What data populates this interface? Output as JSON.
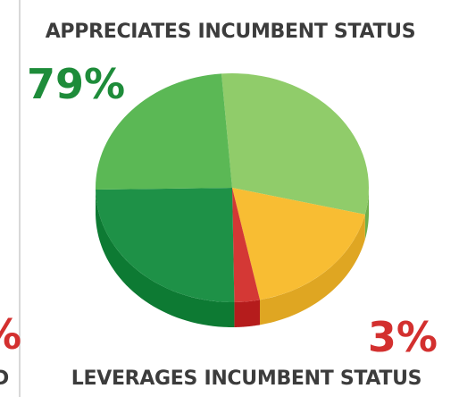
{
  "chart_data": {
    "type": "pie",
    "title": "APPRECIATES INCUMBENT STATUS",
    "subtitle": "LEVERAGES INCUMBENT STATUS",
    "annotations": [
      "79%",
      "3%"
    ],
    "fragments": [
      "%",
      "D"
    ],
    "categories": [
      null,
      null,
      null,
      null,
      null
    ],
    "values": [
      30,
      18,
      3,
      25,
      24
    ],
    "colors": [
      "#90cc6a",
      "#f8bd33",
      "#d43835",
      "#1e9147",
      "#5bb855"
    ],
    "side_colors": [
      "#6fb04a",
      "#dfa622",
      "#b51c1c",
      "#0d7a33",
      "#3f9a3f"
    ]
  }
}
